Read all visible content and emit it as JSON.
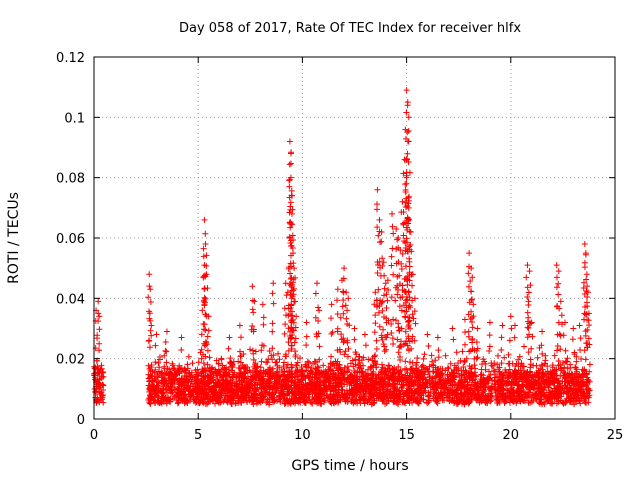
{
  "chart_data": {
    "type": "scatter",
    "title": "Day 058 of 2017, Rate Of TEC Index for receiver hlfx",
    "xlabel": "GPS time / hours",
    "ylabel": "ROTI / TECUs",
    "xlim": [
      0,
      25
    ],
    "ylim": [
      0,
      0.12
    ],
    "x_ticks": [
      "0",
      "5",
      "10",
      "15",
      "20",
      "25"
    ],
    "y_ticks": [
      "0",
      "0.02",
      "0.04",
      "0.06",
      "0.08",
      "0.1",
      "0.12"
    ],
    "x_tick_values": [
      0,
      5,
      10,
      15,
      20,
      25
    ],
    "y_tick_values": [
      0,
      0.02,
      0.04,
      0.06,
      0.08,
      0.1,
      0.12
    ],
    "grid": true,
    "marker": "+",
    "marker_color": "#ff0000",
    "series": [
      {
        "name": "ROTI",
        "baseline_segments": [
          {
            "x_start": 0.0,
            "x_end": 0.45,
            "y_min": 0.003,
            "y_max": 0.026
          },
          {
            "x_start": 2.6,
            "x_end": 23.8,
            "y_min": 0.003,
            "y_max": 0.025
          }
        ],
        "peaks": [
          {
            "x": 0.2,
            "y": 0.039
          },
          {
            "x": 0.25,
            "y": 0.034
          },
          {
            "x": 0.1,
            "y": 0.036
          },
          {
            "x": 2.65,
            "y": 0.048
          },
          {
            "x": 2.7,
            "y": 0.043
          },
          {
            "x": 2.75,
            "y": 0.031
          },
          {
            "x": 3.0,
            "y": 0.028
          },
          {
            "x": 3.5,
            "y": 0.029
          },
          {
            "x": 4.2,
            "y": 0.027
          },
          {
            "x": 5.3,
            "y": 0.066
          },
          {
            "x": 5.35,
            "y": 0.058
          },
          {
            "x": 5.3,
            "y": 0.051
          },
          {
            "x": 5.4,
            "y": 0.048
          },
          {
            "x": 5.2,
            "y": 0.036
          },
          {
            "x": 5.5,
            "y": 0.034
          },
          {
            "x": 6.5,
            "y": 0.027
          },
          {
            "x": 7.0,
            "y": 0.031
          },
          {
            "x": 7.6,
            "y": 0.044
          },
          {
            "x": 7.7,
            "y": 0.039
          },
          {
            "x": 8.1,
            "y": 0.038
          },
          {
            "x": 8.6,
            "y": 0.045
          },
          {
            "x": 9.2,
            "y": 0.045
          },
          {
            "x": 9.3,
            "y": 0.042
          },
          {
            "x": 9.4,
            "y": 0.092
          },
          {
            "x": 9.45,
            "y": 0.088
          },
          {
            "x": 9.45,
            "y": 0.08
          },
          {
            "x": 9.5,
            "y": 0.074
          },
          {
            "x": 9.5,
            "y": 0.068
          },
          {
            "x": 9.55,
            "y": 0.055
          },
          {
            "x": 9.6,
            "y": 0.05
          },
          {
            "x": 9.7,
            "y": 0.034
          },
          {
            "x": 10.2,
            "y": 0.032
          },
          {
            "x": 10.7,
            "y": 0.045
          },
          {
            "x": 10.8,
            "y": 0.036
          },
          {
            "x": 11.4,
            "y": 0.038
          },
          {
            "x": 11.7,
            "y": 0.043
          },
          {
            "x": 11.9,
            "y": 0.046
          },
          {
            "x": 12.0,
            "y": 0.05
          },
          {
            "x": 12.1,
            "y": 0.042
          },
          {
            "x": 12.2,
            "y": 0.04
          },
          {
            "x": 12.5,
            "y": 0.03
          },
          {
            "x": 13.0,
            "y": 0.028
          },
          {
            "x": 13.5,
            "y": 0.042
          },
          {
            "x": 13.6,
            "y": 0.076
          },
          {
            "x": 13.7,
            "y": 0.066
          },
          {
            "x": 13.8,
            "y": 0.062
          },
          {
            "x": 13.9,
            "y": 0.052
          },
          {
            "x": 14.0,
            "y": 0.045
          },
          {
            "x": 14.1,
            "y": 0.046
          },
          {
            "x": 14.3,
            "y": 0.068
          },
          {
            "x": 14.5,
            "y": 0.063
          },
          {
            "x": 14.6,
            "y": 0.06
          },
          {
            "x": 14.7,
            "y": 0.056
          },
          {
            "x": 14.8,
            "y": 0.072
          },
          {
            "x": 14.9,
            "y": 0.086
          },
          {
            "x": 15.0,
            "y": 0.109
          },
          {
            "x": 15.05,
            "y": 0.104
          },
          {
            "x": 15.1,
            "y": 0.092
          },
          {
            "x": 15.0,
            "y": 0.08
          },
          {
            "x": 15.1,
            "y": 0.07
          },
          {
            "x": 15.2,
            "y": 0.062
          },
          {
            "x": 15.3,
            "y": 0.048
          },
          {
            "x": 15.4,
            "y": 0.04
          },
          {
            "x": 16.0,
            "y": 0.028
          },
          {
            "x": 16.5,
            "y": 0.027
          },
          {
            "x": 17.2,
            "y": 0.03
          },
          {
            "x": 17.8,
            "y": 0.033
          },
          {
            "x": 18.0,
            "y": 0.055
          },
          {
            "x": 18.1,
            "y": 0.05
          },
          {
            "x": 18.15,
            "y": 0.047
          },
          {
            "x": 18.2,
            "y": 0.038
          },
          {
            "x": 18.4,
            "y": 0.03
          },
          {
            "x": 19.0,
            "y": 0.032
          },
          {
            "x": 19.6,
            "y": 0.031
          },
          {
            "x": 20.0,
            "y": 0.034
          },
          {
            "x": 20.2,
            "y": 0.031
          },
          {
            "x": 20.8,
            "y": 0.051
          },
          {
            "x": 20.9,
            "y": 0.049
          },
          {
            "x": 20.85,
            "y": 0.039
          },
          {
            "x": 21.0,
            "y": 0.032
          },
          {
            "x": 21.5,
            "y": 0.029
          },
          {
            "x": 22.2,
            "y": 0.051
          },
          {
            "x": 22.3,
            "y": 0.049
          },
          {
            "x": 22.4,
            "y": 0.039
          },
          {
            "x": 22.6,
            "y": 0.032
          },
          {
            "x": 23.0,
            "y": 0.03
          },
          {
            "x": 23.3,
            "y": 0.031
          },
          {
            "x": 23.55,
            "y": 0.058
          },
          {
            "x": 23.6,
            "y": 0.055
          },
          {
            "x": 23.65,
            "y": 0.048
          },
          {
            "x": 23.7,
            "y": 0.042
          },
          {
            "x": 23.75,
            "y": 0.035
          }
        ]
      }
    ]
  }
}
